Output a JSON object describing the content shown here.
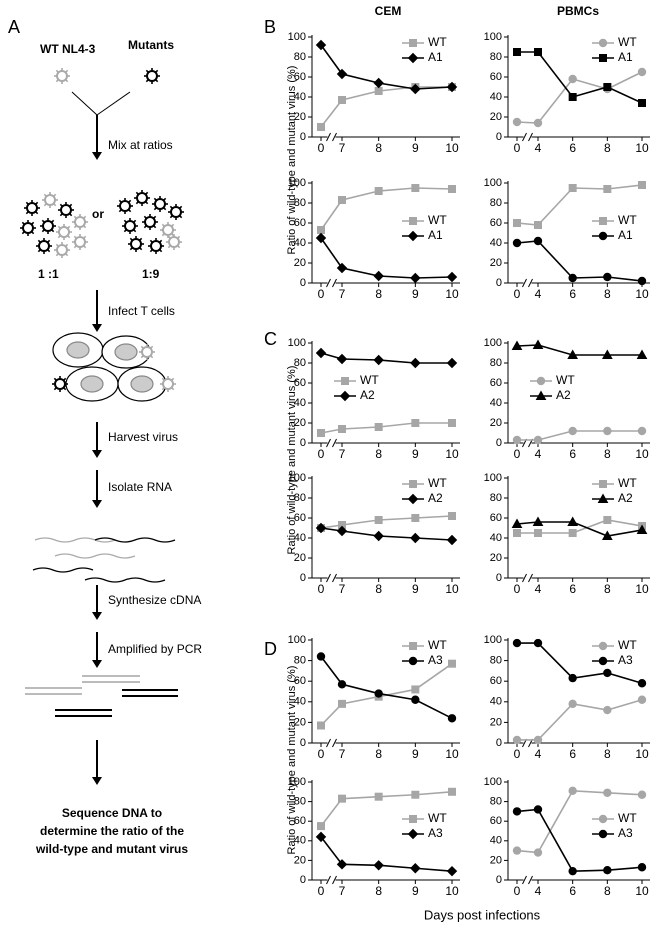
{
  "panel_labels": [
    "A",
    "B",
    "C",
    "D"
  ],
  "diagram": {
    "wt_label": "WT NL4-3",
    "mutant_label": "Mutants",
    "or": "or",
    "ratios": [
      "1 :1",
      "1:9"
    ],
    "steps": [
      "Mix at ratios",
      "Infect T cells",
      "Harvest virus",
      "Isolate RNA",
      "Synthesize cDNA",
      "Amplified by PCR"
    ],
    "final_step": [
      "Sequence DNA to",
      "determine the ratio of the",
      "wild-type and mutant virus"
    ]
  },
  "column_titles": [
    "CEM",
    "PBMCs"
  ],
  "y_axis_label": "Ratio of wild-type and mutant virus (%)",
  "x_axis_label": "Days post infections",
  "chart_data": [
    {
      "type": "line",
      "categories": [
        "0",
        "7",
        "8",
        "9",
        "10"
      ],
      "ylim": [
        0,
        100
      ],
      "yticks": [
        0,
        20,
        40,
        60,
        80,
        100
      ],
      "legend": "upper right",
      "series": [
        {
          "name": "WT",
          "color": "#a6a6a6",
          "marker": "square",
          "values": [
            10,
            37,
            46,
            50,
            50
          ]
        },
        {
          "name": "A1",
          "color": "#000000",
          "marker": "diamond",
          "values": [
            92,
            63,
            54,
            48,
            50
          ]
        }
      ]
    },
    {
      "type": "line",
      "categories": [
        "0",
        "4",
        "6",
        "8",
        "10"
      ],
      "ylim": [
        0,
        100
      ],
      "yticks": [
        0,
        20,
        40,
        60,
        80,
        100
      ],
      "legend": "upper right",
      "series": [
        {
          "name": "WT",
          "color": "#a6a6a6",
          "marker": "circle",
          "values": [
            15,
            14,
            58,
            48,
            65
          ]
        },
        {
          "name": "A1",
          "color": "#000000",
          "marker": "square",
          "values": [
            85,
            85,
            40,
            50,
            34
          ]
        }
      ]
    },
    {
      "type": "line",
      "categories": [
        "0",
        "7",
        "8",
        "9",
        "10"
      ],
      "ylim": [
        0,
        100
      ],
      "yticks": [
        0,
        20,
        40,
        60,
        80,
        100
      ],
      "legend": "center right",
      "series": [
        {
          "name": "WT",
          "color": "#a6a6a6",
          "marker": "square",
          "values": [
            53,
            83,
            92,
            95,
            94
          ]
        },
        {
          "name": "A1",
          "color": "#000000",
          "marker": "diamond",
          "values": [
            45,
            15,
            7,
            5,
            6
          ]
        }
      ]
    },
    {
      "type": "line",
      "categories": [
        "0",
        "4",
        "6",
        "8",
        "10"
      ],
      "ylim": [
        0,
        100
      ],
      "yticks": [
        0,
        20,
        40,
        60,
        80,
        100
      ],
      "legend": "center right",
      "series": [
        {
          "name": "WT",
          "color": "#a6a6a6",
          "marker": "square",
          "values": [
            60,
            58,
            95,
            94,
            98
          ]
        },
        {
          "name": "A1",
          "color": "#000000",
          "marker": "circle",
          "values": [
            40,
            42,
            5,
            6,
            2
          ]
        }
      ]
    },
    {
      "type": "line",
      "categories": [
        "0",
        "7",
        "8",
        "9",
        "10"
      ],
      "ylim": [
        0,
        100
      ],
      "yticks": [
        0,
        20,
        40,
        60,
        80,
        100
      ],
      "legend": "center left",
      "series": [
        {
          "name": "WT",
          "color": "#a6a6a6",
          "marker": "square",
          "values": [
            10,
            14,
            16,
            20,
            20
          ]
        },
        {
          "name": "A2",
          "color": "#000000",
          "marker": "diamond",
          "values": [
            90,
            84,
            83,
            80,
            80
          ]
        }
      ]
    },
    {
      "type": "line",
      "categories": [
        "0",
        "4",
        "6",
        "8",
        "10"
      ],
      "ylim": [
        0,
        100
      ],
      "yticks": [
        0,
        20,
        40,
        60,
        80,
        100
      ],
      "legend": "center left",
      "series": [
        {
          "name": "WT",
          "color": "#a6a6a6",
          "marker": "circle",
          "values": [
            3,
            3,
            12,
            12,
            12
          ]
        },
        {
          "name": "A2",
          "color": "#000000",
          "marker": "triangle",
          "values": [
            97,
            98,
            88,
            88,
            88
          ]
        }
      ]
    },
    {
      "type": "line",
      "categories": [
        "0",
        "7",
        "8",
        "9",
        "10"
      ],
      "ylim": [
        0,
        100
      ],
      "yticks": [
        0,
        20,
        40,
        60,
        80,
        100
      ],
      "legend": "upper right",
      "series": [
        {
          "name": "WT",
          "color": "#a6a6a6",
          "marker": "square",
          "values": [
            50,
            53,
            58,
            60,
            62
          ]
        },
        {
          "name": "A2",
          "color": "#000000",
          "marker": "diamond",
          "values": [
            50,
            47,
            42,
            40,
            38
          ]
        }
      ]
    },
    {
      "type": "line",
      "categories": [
        "0",
        "4",
        "6",
        "8",
        "10"
      ],
      "ylim": [
        0,
        100
      ],
      "yticks": [
        0,
        20,
        40,
        60,
        80,
        100
      ],
      "legend": "upper right",
      "series": [
        {
          "name": "WT",
          "color": "#a6a6a6",
          "marker": "square",
          "values": [
            45,
            45,
            45,
            58,
            52
          ]
        },
        {
          "name": "A2",
          "color": "#000000",
          "marker": "triangle",
          "values": [
            54,
            56,
            56,
            42,
            48
          ]
        }
      ]
    },
    {
      "type": "line",
      "categories": [
        "0",
        "7",
        "8",
        "9",
        "10"
      ],
      "ylim": [
        0,
        100
      ],
      "yticks": [
        0,
        20,
        40,
        60,
        80,
        100
      ],
      "legend": "upper right",
      "series": [
        {
          "name": "WT",
          "color": "#a6a6a6",
          "marker": "square",
          "values": [
            17,
            38,
            45,
            52,
            77
          ]
        },
        {
          "name": "A3",
          "color": "#000000",
          "marker": "circle",
          "values": [
            84,
            57,
            48,
            42,
            24
          ]
        }
      ]
    },
    {
      "type": "line",
      "categories": [
        "0",
        "4",
        "6",
        "8",
        "10"
      ],
      "ylim": [
        0,
        100
      ],
      "yticks": [
        0,
        20,
        40,
        60,
        80,
        100
      ],
      "legend": "upper right",
      "series": [
        {
          "name": "WT",
          "color": "#a6a6a6",
          "marker": "circle",
          "values": [
            3,
            3,
            38,
            32,
            42
          ]
        },
        {
          "name": "A3",
          "color": "#000000",
          "marker": "circle",
          "values": [
            97,
            97,
            63,
            68,
            58
          ]
        }
      ]
    },
    {
      "type": "line",
      "categories": [
        "0",
        "7",
        "8",
        "9",
        "10"
      ],
      "ylim": [
        0,
        100
      ],
      "yticks": [
        0,
        20,
        40,
        60,
        80,
        100
      ],
      "legend": "center right",
      "series": [
        {
          "name": "WT",
          "color": "#a6a6a6",
          "marker": "square",
          "values": [
            55,
            83,
            85,
            87,
            90
          ]
        },
        {
          "name": "A3",
          "color": "#000000",
          "marker": "diamond",
          "values": [
            44,
            16,
            15,
            12,
            9
          ]
        }
      ]
    },
    {
      "type": "line",
      "categories": [
        "0",
        "4",
        "6",
        "8",
        "10"
      ],
      "ylim": [
        0,
        100
      ],
      "yticks": [
        0,
        20,
        40,
        60,
        80,
        100
      ],
      "legend": "center right",
      "series": [
        {
          "name": "WT",
          "color": "#a6a6a6",
          "marker": "circle",
          "values": [
            30,
            28,
            91,
            89,
            87
          ]
        },
        {
          "name": "A3",
          "color": "#000000",
          "marker": "circle",
          "values": [
            70,
            72,
            9,
            10,
            13
          ]
        }
      ]
    }
  ]
}
